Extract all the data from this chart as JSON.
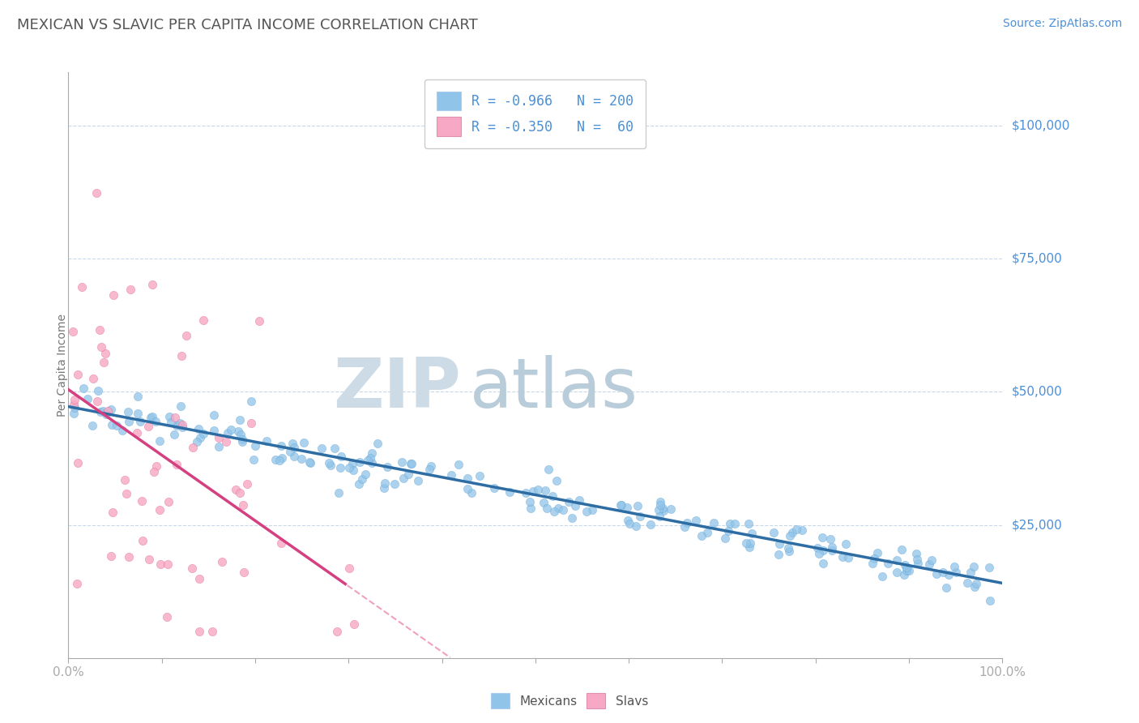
{
  "title": "MEXICAN VS SLAVIC PER CAPITA INCOME CORRELATION CHART",
  "source_text": "Source: ZipAtlas.com",
  "ylabel": "Per Capita Income",
  "mexican_color": "#90c4e8",
  "mexican_edge_color": "#5a9fd4",
  "slav_color": "#f7a8c4",
  "slav_edge_color": "#e06090",
  "mexican_line_color": "#2e6da4",
  "slav_line_color": "#d44080",
  "slav_dash_color": "#f0a0c0",
  "watermark_zip": "ZIP",
  "watermark_atlas": "atlas",
  "watermark_color_zip": "#d0dfe8",
  "watermark_color_atlas": "#b0c8d8",
  "background_color": "#ffffff",
  "grid_color": "#c8d8e8",
  "title_color": "#555555",
  "axis_label_color": "#4a90d9",
  "mexican_R": -0.966,
  "mexican_N": 200,
  "slav_R": -0.35,
  "slav_N": 60,
  "seed": 42,
  "mex_intercept": 47000,
  "mex_slope": -33000,
  "mex_noise_std": 2000,
  "slav_intercept": 47000,
  "slav_slope": -120000,
  "slav_noise_std": 18000
}
